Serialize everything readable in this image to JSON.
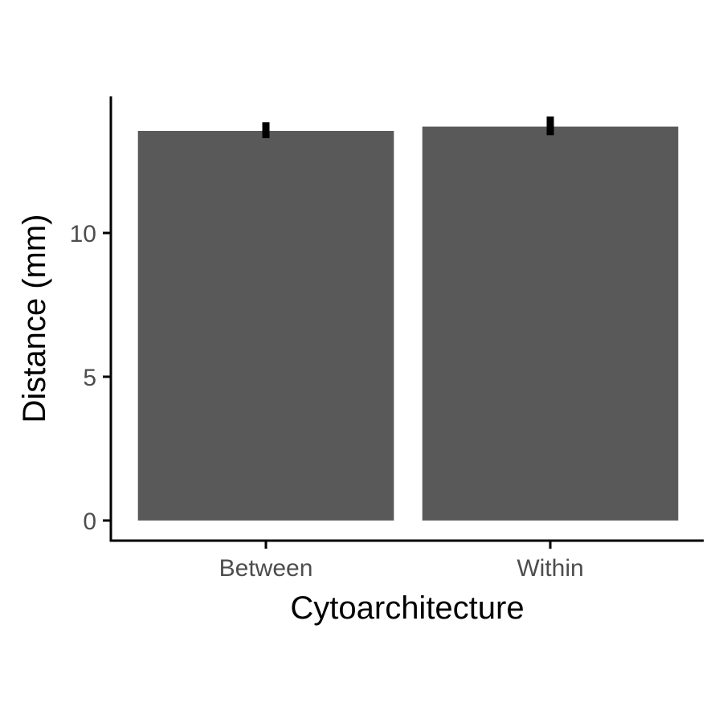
{
  "chart_data": {
    "type": "bar",
    "title": "",
    "xlabel": "Cytoarchitecture",
    "ylabel": "Distance (mm)",
    "categories": [
      "Between",
      "Within"
    ],
    "values": [
      13.55,
      13.7
    ],
    "error_low": [
      13.3,
      13.4
    ],
    "error_high": [
      13.85,
      14.05
    ],
    "ylim": [
      -0.7,
      14.75
    ],
    "yticks": [
      0,
      5,
      10
    ],
    "ytick_labels": [
      "0",
      "5",
      "10"
    ],
    "grid": false,
    "legend": "none",
    "colors": {
      "bar": "#595959",
      "error_bar": "#000000",
      "axis": "#000000",
      "tick_label": "#4d4d4d"
    }
  }
}
